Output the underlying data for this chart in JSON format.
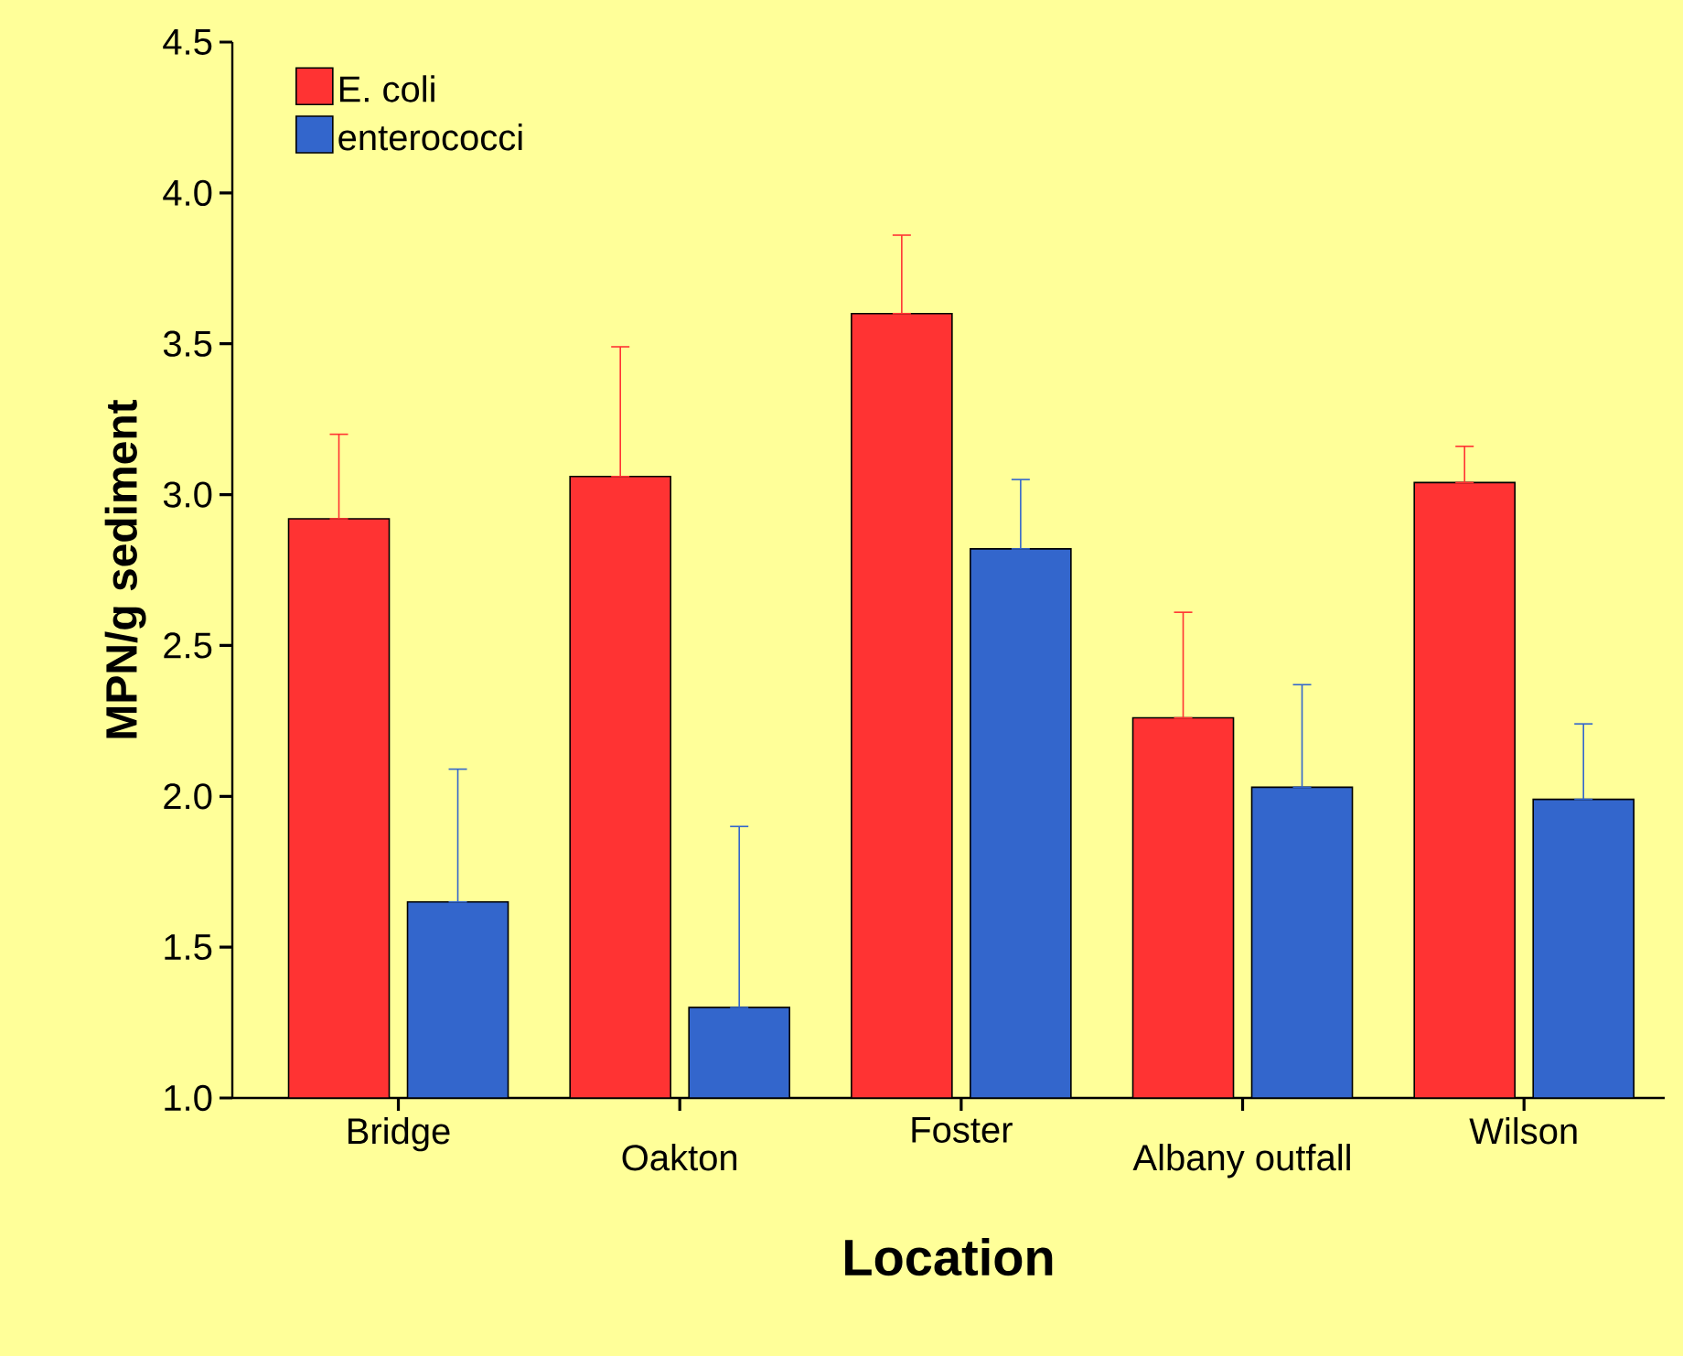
{
  "chart_data": {
    "type": "bar",
    "xlabel": "Location",
    "ylabel": "MPN/g sediment",
    "categories": [
      "Bridge",
      "Oakton",
      "Foster",
      "Albany outfall",
      "Wilson"
    ],
    "series": [
      {
        "name": "E. coli",
        "color": "#ff3333",
        "values": [
          2.92,
          3.06,
          3.6,
          2.26,
          3.04
        ],
        "errors": [
          [
            2.92,
            3.2
          ],
          [
            3.06,
            3.49
          ],
          [
            3.6,
            3.86
          ],
          [
            2.26,
            2.61
          ],
          [
            3.04,
            3.16
          ]
        ]
      },
      {
        "name": "enterococci",
        "color": "#3366cc",
        "values": [
          1.65,
          1.3,
          2.82,
          2.03,
          1.99
        ],
        "errors": [
          [
            1.65,
            2.09
          ],
          [
            1.3,
            1.9
          ],
          [
            2.82,
            3.05
          ],
          [
            2.03,
            2.37
          ],
          [
            1.99,
            2.24
          ]
        ]
      }
    ],
    "ylim": [
      1.0,
      4.5
    ],
    "yticks": [
      {
        "value": 1.0,
        "label": "1.0"
      },
      {
        "value": 1.5,
        "label": "1.5"
      },
      {
        "value": 2.0,
        "label": "2.0"
      },
      {
        "value": 2.5,
        "label": "2.5"
      },
      {
        "value": 3.0,
        "label": "3.0"
      },
      {
        "value": 3.5,
        "label": "3.5"
      },
      {
        "value": 4.0,
        "label": "4.0"
      },
      {
        "value": 4.5,
        "label": "4.5"
      }
    ],
    "legend": "top left"
  }
}
